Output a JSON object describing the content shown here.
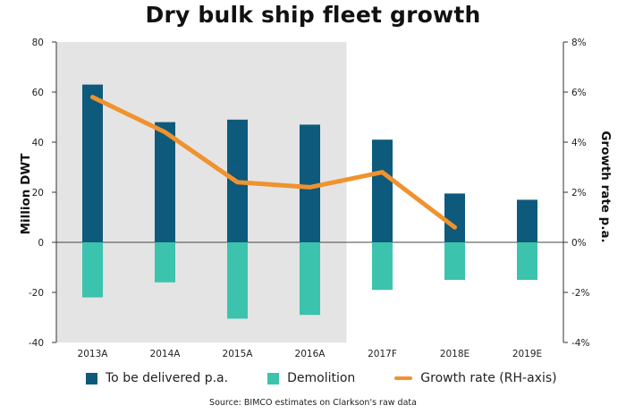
{
  "title": "Dry bulk ship fleet growth",
  "source": "Source: BIMCO estimates on Clarkson's raw data",
  "colors": {
    "delivered": "#0d5a7c",
    "demolition": "#3cc3ad",
    "growth": "#f0922e",
    "shade": "#e4e4e4",
    "axis": "#333333"
  },
  "chart_data": {
    "type": "bar",
    "title": "Dry bulk ship fleet growth",
    "categories": [
      "2013A",
      "2014A",
      "2015A",
      "2016A",
      "2017F",
      "2018E",
      "2019E"
    ],
    "ylabel": "Million DWT",
    "y2label": "Growth rate p.a.",
    "ylim": [
      -40,
      80
    ],
    "y2lim": [
      -4,
      8
    ],
    "yticks": [
      "-40",
      "-20",
      "0",
      "20",
      "40",
      "60",
      "80"
    ],
    "y2ticks": [
      "-4%",
      "-2%",
      "0%",
      "2%",
      "4%",
      "6%",
      "8%"
    ],
    "shaded_categories": [
      "2013A",
      "2014A",
      "2015A",
      "2016A"
    ],
    "series": [
      {
        "name": "To be delivered p.a.",
        "type": "bar",
        "values": [
          63,
          48,
          49,
          47,
          41,
          19.5,
          17
        ]
      },
      {
        "name": "Demolition",
        "type": "bar",
        "values": [
          -22,
          -16,
          -30.5,
          -29,
          -19,
          -15,
          -15
        ]
      },
      {
        "name": "Growth rate (RH-axis)",
        "type": "line",
        "axis": "right",
        "values": [
          5.8,
          4.4,
          2.4,
          2.2,
          2.8,
          0.6,
          null
        ]
      }
    ],
    "legend_position": "bottom",
    "grid": false
  }
}
